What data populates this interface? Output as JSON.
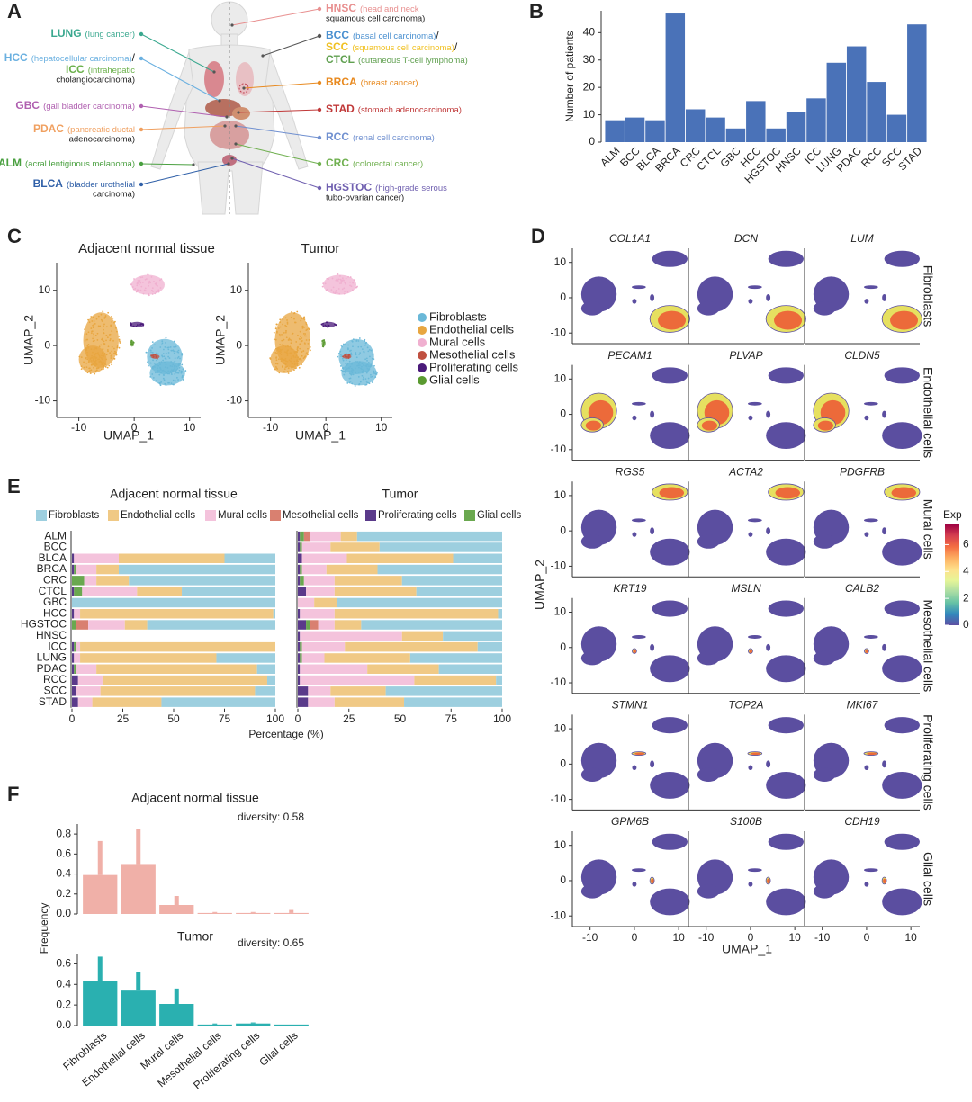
{
  "panel_labels": [
    "A",
    "B",
    "C",
    "D",
    "E",
    "F"
  ],
  "body_diagram": {
    "left": [
      {
        "abbr": "LUNG",
        "lines": [
          "(lung cancer)"
        ],
        "color": "#3aa88f"
      },
      {
        "abbr": "HCC",
        "lines": [
          "(hepatocellular carcinoma)"
        ],
        "sep": "/",
        "color": "#6ab0e0"
      },
      {
        "abbr": "ICC",
        "lines": [
          "(intrahepatic",
          "cholangiocarcinoma)"
        ],
        "color": "#6ab04a"
      },
      {
        "abbr": "GBC",
        "lines": [
          "(gall bladder carcinoma)"
        ],
        "color": "#b060b0"
      },
      {
        "abbr": "PDAC",
        "lines": [
          "(pancreatic ductal",
          "adenocarcinoma)"
        ],
        "color": "#f0a060"
      },
      {
        "abbr": "ALM",
        "lines": [
          "(acral lentiginous melanoma)"
        ],
        "color": "#4aa040"
      },
      {
        "abbr": "BLCA",
        "lines": [
          "(bladder urothelial",
          "carcinoma)"
        ],
        "color": "#3060a8"
      }
    ],
    "right": [
      {
        "abbr": "HNSC",
        "lines": [
          "(head and neck",
          "squamous cell carcinoma)"
        ],
        "color": "#e89090"
      },
      {
        "abbr": "BCC",
        "lines": [
          "(basal cell carcinoma)"
        ],
        "sep": "/",
        "color": "#4a90d0"
      },
      {
        "abbr": "SCC",
        "lines": [
          "(squamous cell carcinoma)"
        ],
        "sep": "/",
        "color": "#f0c020"
      },
      {
        "abbr": "CTCL",
        "lines": [
          "(cutaneous T-cell lymphoma)"
        ],
        "color": "#60a050"
      },
      {
        "abbr": "BRCA",
        "lines": [
          "(breast cancer)"
        ],
        "color": "#e88a20"
      },
      {
        "abbr": "STAD",
        "lines": [
          "(stomach adenocarcinoma)"
        ],
        "color": "#c03838"
      },
      {
        "abbr": "RCC",
        "lines": [
          "(renal cell carcinoma)"
        ],
        "color": "#7090d0"
      },
      {
        "abbr": "CRC",
        "lines": [
          "(colorectal cancer)"
        ],
        "color": "#70b050"
      },
      {
        "abbr": "HGSTOC",
        "lines": [
          "(high-grade serous",
          "tubo-ovarian cancer)"
        ],
        "color": "#7060b0"
      }
    ]
  },
  "cell_types": [
    {
      "name": "Fibroblasts",
      "color": "#6ab8d8"
    },
    {
      "name": "Endothelial cells",
      "color": "#e8a640"
    },
    {
      "name": "Mural cells",
      "color": "#f0b0d0"
    },
    {
      "name": "Mesothelial cells",
      "color": "#c05040"
    },
    {
      "name": "Proliferating cells",
      "color": "#4a1a7a"
    },
    {
      "name": "Glial cells",
      "color": "#5a9a30"
    }
  ],
  "feature_plots": {
    "rows": [
      {
        "label": "Fibroblasts",
        "genes": [
          "COL1A1",
          "DCN",
          "LUM"
        ]
      },
      {
        "label": "Endothelial cells",
        "genes": [
          "PECAM1",
          "PLVAP",
          "CLDN5"
        ]
      },
      {
        "label": "Mural cells",
        "genes": [
          "RGS5",
          "ACTA2",
          "PDGFRB"
        ]
      },
      {
        "label": "Mesothelial cells",
        "genes": [
          "KRT19",
          "MSLN",
          "CALB2"
        ]
      },
      {
        "label": "Proliferating cells",
        "genes": [
          "STMN1",
          "TOP2A",
          "MKI67"
        ]
      },
      {
        "label": "Glial cells",
        "genes": [
          "GPM6B",
          "S100B",
          "CDH19"
        ]
      }
    ],
    "xlabel": "UMAP_1",
    "ylabel": "UMAP_2",
    "xlim": [
      -14,
      12
    ],
    "ylim": [
      -13,
      14
    ],
    "xticks": [
      -10,
      0,
      10
    ],
    "yticks": [
      -10,
      0,
      10
    ],
    "colorbar": {
      "title": "Exp",
      "lim": [
        0,
        7.5
      ],
      "ticks": [
        0,
        2,
        4,
        6
      ]
    }
  },
  "chart_data": [
    {
      "type": "bar",
      "ylabel": "Number of patients",
      "color": "#4a72b8",
      "categories": [
        "ALM",
        "BCC",
        "BLCA",
        "BRCA",
        "CRC",
        "CTCL",
        "GBC",
        "HCC",
        "HGSTOC",
        "HNSC",
        "ICC",
        "LUNG",
        "PDAC",
        "RCC",
        "SCC",
        "STAD"
      ],
      "values": [
        8,
        9,
        8,
        47,
        12,
        9,
        5,
        15,
        5,
        11,
        16,
        29,
        35,
        22,
        10,
        43
      ],
      "ylim": [
        0,
        48
      ],
      "yticks": [
        0,
        10,
        20,
        30,
        40
      ]
    },
    {
      "type": "scatter",
      "title": "Adjacent normal tissue",
      "xlabel": "UMAP_1",
      "ylabel": "UMAP_2",
      "xlim": [
        -14,
        12
      ],
      "ylim": [
        -13,
        15
      ],
      "xticks": [
        -10,
        0,
        10
      ],
      "yticks": [
        -10,
        0,
        10
      ]
    },
    {
      "type": "scatter",
      "title": "Tumor",
      "xlabel": "UMAP_1",
      "ylabel": "UMAP_2",
      "xlim": [
        -14,
        12
      ],
      "ylim": [
        -13,
        15
      ],
      "xticks": [
        -10,
        0,
        10
      ],
      "yticks": [
        -10,
        0,
        10
      ]
    },
    {
      "type": "stacked_barh",
      "title": "Adjacent normal tissue",
      "xlabel": "Percentage (%)",
      "categories": [
        "ALM",
        "BCC",
        "BLCA",
        "BRCA",
        "CRC",
        "CTCL",
        "GBC",
        "HCC",
        "HGSTOC",
        "HNSC",
        "ICC",
        "LUNG",
        "PDAC",
        "RCC",
        "SCC",
        "STAD"
      ],
      "xlim": [
        0,
        100
      ],
      "xticks": [
        0,
        25,
        50,
        75,
        100
      ],
      "series": [
        {
          "name": "Fibroblasts",
          "color": "#9dcfdf",
          "values": [
            null,
            null,
            25,
            77,
            72,
            46,
            100,
            1,
            63,
            null,
            0,
            29,
            9,
            4,
            10,
            56
          ]
        },
        {
          "name": "Endothelial cells",
          "color": "#f0c985",
          "values": [
            null,
            null,
            52,
            11,
            16,
            22,
            0,
            95,
            11,
            null,
            96,
            67,
            79,
            81,
            76,
            34
          ]
        },
        {
          "name": "Mural cells",
          "color": "#f4c3dc",
          "values": [
            null,
            null,
            22,
            10,
            6,
            27,
            0,
            3,
            18,
            null,
            2,
            3,
            10,
            12,
            12,
            7
          ]
        },
        {
          "name": "Mesothelial cells",
          "color": "#d98070",
          "values": [
            null,
            null,
            0,
            0,
            0,
            0,
            0,
            0,
            6,
            null,
            0,
            0,
            0,
            0,
            0,
            0
          ]
        },
        {
          "name": "Proliferating cells",
          "color": "#5a3a8a",
          "values": [
            null,
            null,
            1,
            1,
            0,
            1,
            0,
            1,
            0,
            null,
            1,
            1,
            1,
            3,
            2,
            3
          ]
        },
        {
          "name": "Glial cells",
          "color": "#6aa84f",
          "values": [
            null,
            null,
            0,
            1,
            6,
            4,
            0,
            0,
            2,
            null,
            1,
            0,
            1,
            0,
            0,
            0
          ]
        }
      ]
    },
    {
      "type": "stacked_barh",
      "title": "Tumor",
      "categories": [
        "ALM",
        "BCC",
        "BLCA",
        "BRCA",
        "CRC",
        "CTCL",
        "GBC",
        "HCC",
        "HGSTOC",
        "HNSC",
        "ICC",
        "LUNG",
        "PDAC",
        "RCC",
        "SCC",
        "STAD"
      ],
      "xlim": [
        0,
        100
      ],
      "xticks": [
        0,
        25,
        50,
        75,
        100
      ],
      "series": [
        {
          "name": "Fibroblasts",
          "color": "#9dcfdf",
          "values": [
            71,
            60,
            24,
            61,
            49,
            42,
            81,
            2,
            69,
            29,
            12,
            45,
            31,
            3,
            57,
            48
          ]
        },
        {
          "name": "Endothelial cells",
          "color": "#f0c985",
          "values": [
            8,
            24,
            52,
            25,
            33,
            40,
            11,
            80,
            13,
            20,
            65,
            42,
            35,
            40,
            27,
            34
          ]
        },
        {
          "name": "Mural cells",
          "color": "#f4c3dc",
          "values": [
            15,
            14,
            22,
            12,
            15,
            14,
            8,
            17,
            8,
            50,
            21,
            11,
            33,
            56,
            11,
            13
          ]
        },
        {
          "name": "Mesothelial cells",
          "color": "#d98070",
          "values": [
            3,
            0,
            0,
            0,
            0,
            0,
            0,
            0,
            4,
            0,
            0,
            0,
            0,
            0,
            0,
            0
          ]
        },
        {
          "name": "Proliferating cells",
          "color": "#5a3a8a",
          "values": [
            1,
            1,
            2,
            1,
            1,
            4,
            0,
            1,
            4,
            1,
            1,
            1,
            1,
            1,
            5,
            5
          ]
        },
        {
          "name": "Glial cells",
          "color": "#6aa84f",
          "values": [
            2,
            1,
            0,
            1,
            2,
            0,
            0,
            0,
            2,
            0,
            1,
            1,
            0,
            0,
            0,
            0
          ]
        }
      ]
    },
    {
      "type": "bar_error",
      "title": "Adjacent normal tissue",
      "annotation": "diversity: 0.58",
      "ylabel": "Frequency",
      "color": "#f0b0a8",
      "values": [
        0.39,
        0.5,
        0.09,
        0.01,
        0.01,
        0.01
      ],
      "errors": [
        0.34,
        0.35,
        0.09,
        0.01,
        0.01,
        0.03
      ],
      "ylim": [
        0,
        0.9
      ],
      "yticks": [
        {
          "value": 0,
          "label": "0.0"
        },
        0.2,
        0.4,
        0.6,
        0.8
      ]
    },
    {
      "type": "bar_error",
      "title": "Tumor",
      "annotation": "diversity: 0.65",
      "color": "#2ab0b0",
      "categories": [
        "Fibroblasts",
        "Endothelial cells",
        "Mural cells",
        "Mesothelial cells",
        "Proliferating cells",
        "Glial cells"
      ],
      "values": [
        0.43,
        0.34,
        0.21,
        0.01,
        0.02,
        0.01
      ],
      "errors": [
        0.24,
        0.18,
        0.15,
        0.01,
        0.01,
        0
      ],
      "ylim": [
        0,
        0.7
      ],
      "yticks": [
        {
          "value": 0,
          "label": "0.0"
        },
        0.2,
        0.4,
        0.6
      ]
    }
  ]
}
